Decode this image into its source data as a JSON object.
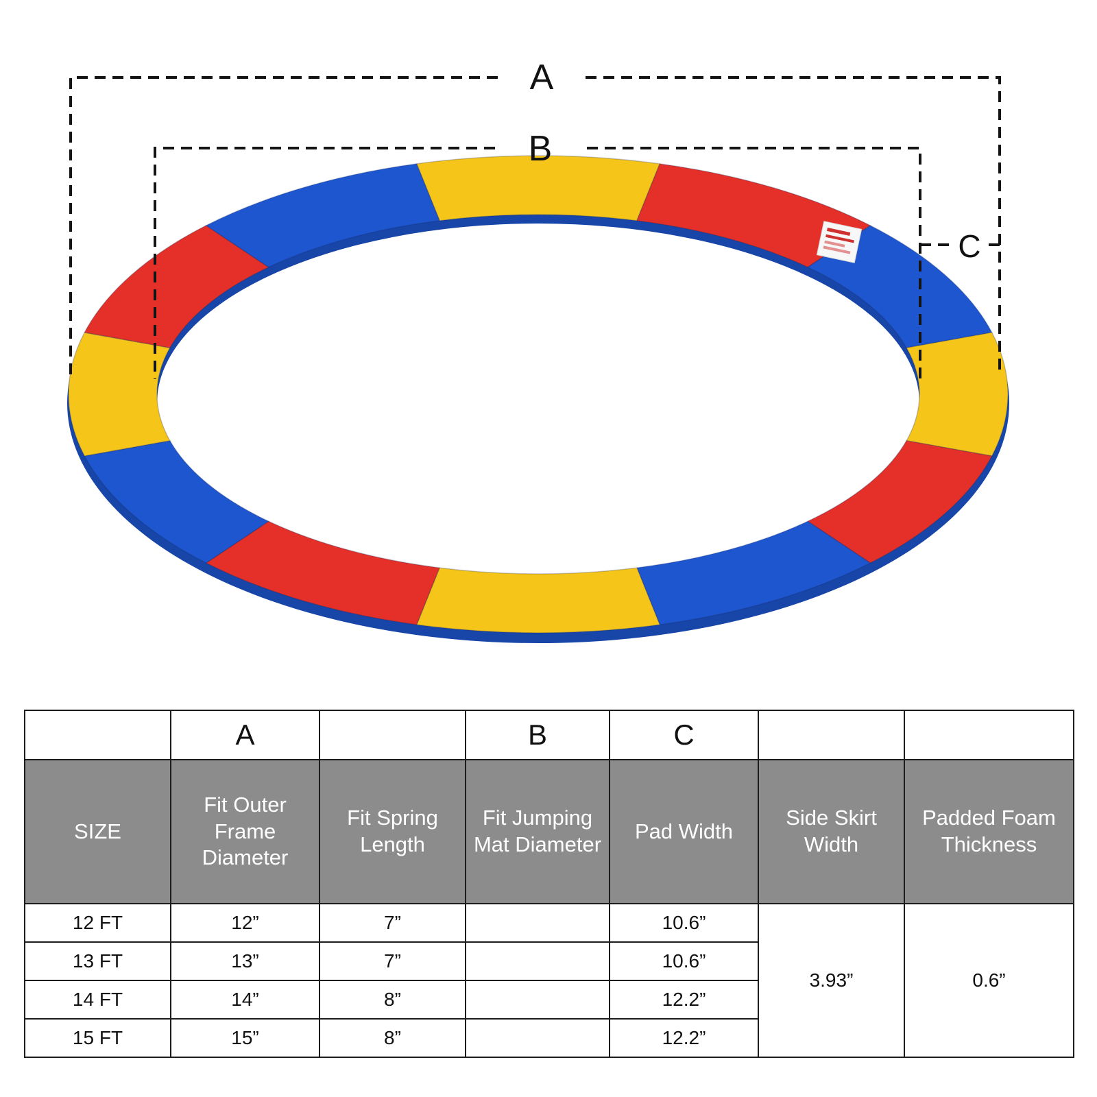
{
  "diagram": {
    "labels": {
      "a": "A",
      "b": "B",
      "c": "C"
    },
    "colors": {
      "red": "#e43028",
      "yellow": "#f6c51a",
      "blue": "#1e56cf",
      "underside": "#1745a8",
      "line": "#141414"
    },
    "ring_segments": [
      "yellow",
      "red",
      "blue",
      "yellow",
      "red",
      "blue",
      "yellow",
      "red",
      "blue",
      "yellow",
      "red",
      "blue"
    ]
  },
  "table": {
    "letter_row": [
      "",
      "A",
      "",
      "B",
      "C",
      "",
      ""
    ],
    "headers": [
      "SIZE",
      "Fit Outer Frame Diameter",
      "Fit Spring Length",
      "Fit Jumping Mat Diameter",
      "Pad Width",
      "Side Skirt Width",
      "Padded Foam Thickness"
    ],
    "rows": [
      [
        "12 FT",
        "12”",
        "7”",
        "",
        "10.6”"
      ],
      [
        "13 FT",
        "13”",
        "7”",
        "",
        "10.6”"
      ],
      [
        "14 FT",
        "14”",
        "8”",
        "",
        "12.2”"
      ],
      [
        "15 FT",
        "15”",
        "8”",
        "",
        "12.2”"
      ]
    ],
    "merged": {
      "side_skirt_width": "3.93”",
      "padded_foam_thickness": "0.6”"
    }
  }
}
